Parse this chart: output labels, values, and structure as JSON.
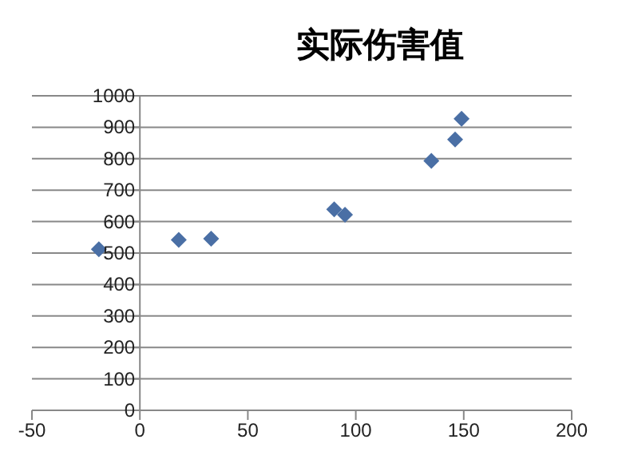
{
  "chart_data": {
    "type": "scatter",
    "title": "实际伤害值",
    "x": [
      -19,
      18,
      33,
      90,
      95,
      135,
      146,
      149
    ],
    "values": [
      512,
      542,
      546,
      639,
      622,
      793,
      861,
      927
    ],
    "color": "#4a6fa5",
    "marker": "diamond",
    "grid": "y",
    "xlim": [
      -50,
      200
    ],
    "xticks": [
      -50,
      0,
      50,
      100,
      150,
      200
    ],
    "ylim": [
      0,
      1000
    ],
    "yticks": [
      0,
      100,
      200,
      300,
      400,
      500,
      600,
      700,
      800,
      900,
      1000
    ]
  }
}
